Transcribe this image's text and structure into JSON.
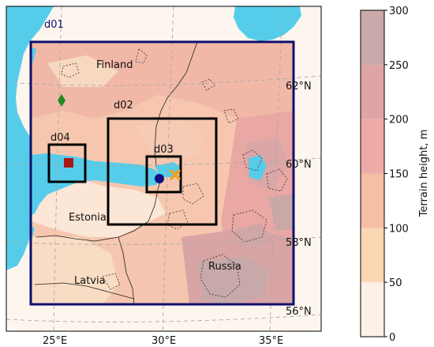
{
  "map": {
    "domains": [
      {
        "id": "d01",
        "label": "d01"
      },
      {
        "id": "d02",
        "label": "d02"
      },
      {
        "id": "d03",
        "label": "d03"
      },
      {
        "id": "d04",
        "label": "d04"
      }
    ],
    "places": {
      "finland": "Finland",
      "estonia": "Estonia",
      "latvia": "Latvia",
      "russia": "Russia"
    },
    "lon_ticks": [
      "25°E",
      "30°E",
      "35°E"
    ],
    "lat_ticks": [
      "62°N",
      "60°N",
      "58°N",
      "56°N"
    ],
    "colors": {
      "sea": "#55cdea",
      "d01_frame": "#0f0f6e",
      "inner_frames": "#000000",
      "marker_diamond": "#1f8a1f",
      "marker_square": "#a81818",
      "marker_circle": "#101080",
      "marker_x": "#f0a020"
    }
  },
  "colorbar": {
    "label": "Terrain height, m",
    "ticks": [
      "0",
      "50",
      "100",
      "150",
      "200",
      "250",
      "300"
    ],
    "colors": [
      "#fdf1e6",
      "#fbd7b4",
      "#f4bfa4",
      "#eeaaa6",
      "#dfa5a5",
      "#c9a9a9"
    ]
  }
}
